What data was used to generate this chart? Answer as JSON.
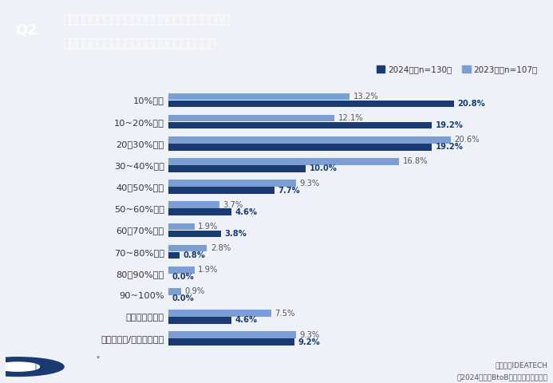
{
  "categories": [
    "10%未満",
    "10~20%未満",
    "20〜30%未満",
    "30~40%未満",
    "40〜50%未満",
    "50~60%未満",
    "60〜70%未満",
    "70~80%未満",
    "80〜90%未満",
    "90~100%",
    "予算設定はない",
    "わからない/答えられない"
  ],
  "values_2024": [
    20.8,
    19.2,
    19.2,
    10.0,
    7.7,
    4.6,
    3.8,
    0.8,
    0.0,
    0.0,
    4.6,
    9.2
  ],
  "values_2023": [
    13.2,
    12.1,
    20.6,
    16.8,
    9.3,
    3.7,
    1.9,
    2.8,
    1.9,
    0.9,
    7.5,
    9.3
  ],
  "color_2024": "#1B3A72",
  "color_2023": "#7B9FD4",
  "bg_color": "#EEF2F8",
  "header_bg": "#1B3A72",
  "q2_label": "Q2",
  "title_line1": "あなたのお勤め先ではマーケティング予算における、",
  "title_line2": "広告予算はどのくらいの割合になっていますか。",
  "legend_2024": "2024年（n=130）",
  "legend_2023": "2023年（n=107）",
  "footnote1": "株式会社IDEATECH",
  "footnote2": "【2024年版】BtoB広告施策の定点調査",
  "bar_height": 0.32,
  "xlim": [
    0,
    25
  ],
  "label_color_2024": "#1B3A72",
  "label_color_2023": "#555555"
}
